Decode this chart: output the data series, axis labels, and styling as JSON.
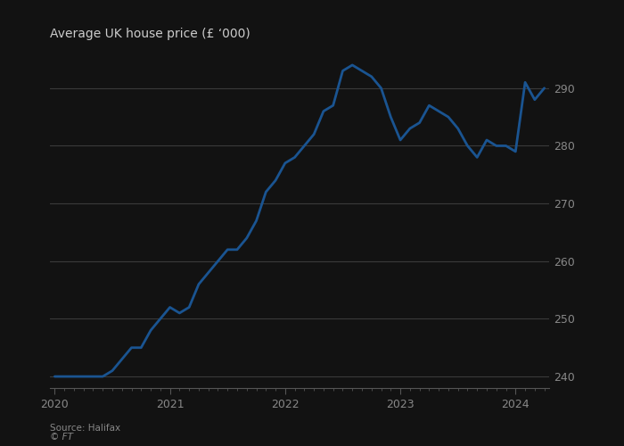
{
  "title": "Average UK house price (£ ‘000)",
  "source_line1": "Source: Halifax",
  "source_line2": "© FT",
  "line_color": "#1a5491",
  "background_color": "#121212",
  "grid_color": "#3a3a3a",
  "tick_label_color": "#888888",
  "title_color": "#cccccc",
  "source_color": "#888888",
  "spine_color": "#555555",
  "ylim": [
    238,
    296
  ],
  "yticks": [
    240,
    250,
    260,
    270,
    280,
    290
  ],
  "values": [
    240,
    240,
    240,
    240,
    240,
    240,
    241,
    243,
    245,
    245,
    248,
    250,
    252,
    251,
    252,
    256,
    258,
    260,
    262,
    262,
    264,
    267,
    272,
    274,
    277,
    278,
    280,
    282,
    286,
    287,
    293,
    294,
    293,
    292,
    290,
    285,
    281,
    283,
    284,
    287,
    286,
    285,
    283,
    280,
    278,
    281,
    280,
    280,
    279,
    291,
    288,
    290
  ],
  "xtick_years": [
    2020,
    2021,
    2022,
    2023,
    2024
  ],
  "xtick_positions": [
    0,
    12,
    24,
    36,
    48
  ],
  "n_points": 52,
  "linewidth": 2.0
}
